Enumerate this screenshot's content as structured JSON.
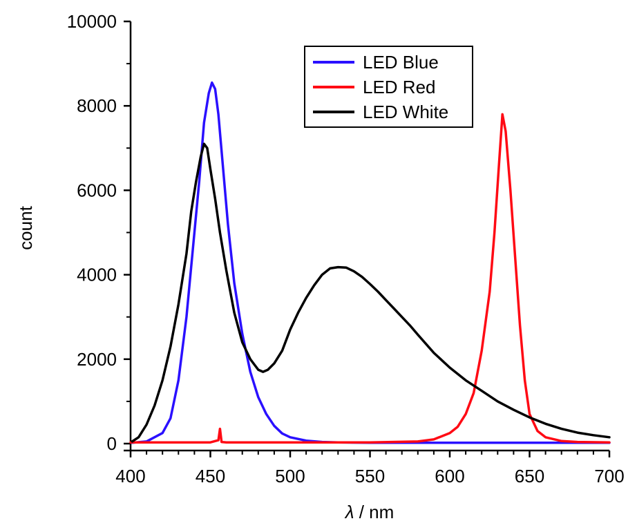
{
  "chart_data": {
    "type": "line",
    "xlabel_italic": "λ",
    "xlabel_unit": " / nm",
    "ylabel": "count",
    "xlim": [
      400,
      700
    ],
    "ylim": [
      0,
      10000
    ],
    "xticks": [
      "400",
      "450",
      "500",
      "550",
      "600",
      "650",
      "700"
    ],
    "yticks": [
      "0",
      "2000",
      "4000",
      "6000",
      "8000",
      "10000"
    ],
    "legend_position": "top-center",
    "grid": false,
    "series": [
      {
        "name": "LED Blue",
        "color": "#2a10ff",
        "x": [
          401,
          410,
          420,
          425,
          430,
          435,
          440,
          443,
          446,
          449,
          451,
          453,
          455,
          458,
          461,
          465,
          470,
          475,
          480,
          485,
          490,
          495,
          500,
          510,
          520,
          530,
          550,
          600,
          650,
          700
        ],
        "y": [
          20,
          50,
          250,
          600,
          1500,
          3000,
          5000,
          6200,
          7600,
          8300,
          8550,
          8400,
          7800,
          6500,
          5200,
          3800,
          2600,
          1700,
          1100,
          700,
          420,
          240,
          150,
          70,
          40,
          30,
          20,
          20,
          20,
          20
        ]
      },
      {
        "name": "LED Red",
        "color": "#ff0a14",
        "x": [
          400,
          450,
          455,
          456,
          457,
          460,
          500,
          550,
          580,
          590,
          600,
          605,
          610,
          615,
          620,
          625,
          628,
          631,
          633,
          635,
          638,
          641,
          644,
          647,
          650,
          655,
          660,
          670,
          680,
          700
        ],
        "y": [
          30,
          30,
          80,
          350,
          40,
          30,
          30,
          30,
          50,
          100,
          250,
          400,
          700,
          1200,
          2200,
          3600,
          5000,
          6700,
          7800,
          7400,
          6000,
          4400,
          2800,
          1500,
          700,
          300,
          150,
          60,
          40,
          30
        ]
      },
      {
        "name": "LED White",
        "color": "#000000",
        "x": [
          401,
          405,
          410,
          415,
          420,
          425,
          430,
          435,
          438,
          441,
          444,
          446,
          448,
          450,
          453,
          456,
          460,
          465,
          470,
          475,
          478,
          480,
          483,
          486,
          490,
          495,
          500,
          505,
          510,
          515,
          520,
          525,
          530,
          535,
          540,
          545,
          550,
          555,
          560,
          565,
          570,
          575,
          580,
          590,
          600,
          610,
          620,
          630,
          640,
          650,
          660,
          670,
          680,
          690,
          700
        ],
        "y": [
          50,
          150,
          450,
          900,
          1500,
          2300,
          3300,
          4500,
          5500,
          6200,
          6800,
          7100,
          7000,
          6500,
          5800,
          5000,
          4100,
          3100,
          2400,
          2000,
          1850,
          1750,
          1700,
          1750,
          1900,
          2200,
          2700,
          3100,
          3450,
          3750,
          4000,
          4150,
          4180,
          4170,
          4080,
          3950,
          3780,
          3600,
          3400,
          3200,
          3000,
          2800,
          2580,
          2150,
          1800,
          1500,
          1250,
          1000,
          800,
          620,
          470,
          350,
          260,
          200,
          150
        ]
      }
    ]
  }
}
